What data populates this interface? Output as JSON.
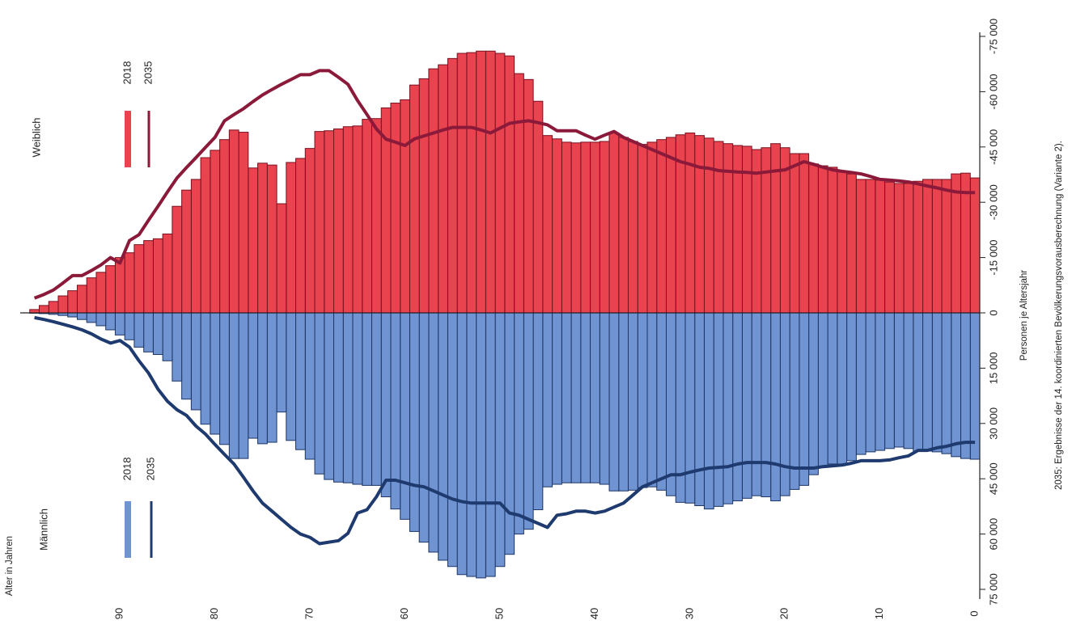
{
  "chart_data": {
    "type": "population-pyramid",
    "x_label": "Alter in Jahren",
    "y_label": "Personen je Altersjahr",
    "note": "2035:  Ergebnisse der 14. koordinierten Bevölkerungsvorausberechnung (Variante 2).",
    "x": [
      0,
      1,
      2,
      3,
      4,
      5,
      6,
      7,
      8,
      9,
      10,
      11,
      12,
      13,
      14,
      15,
      16,
      17,
      18,
      19,
      20,
      21,
      22,
      23,
      24,
      25,
      26,
      27,
      28,
      29,
      30,
      31,
      32,
      33,
      34,
      35,
      36,
      37,
      38,
      39,
      40,
      41,
      42,
      43,
      44,
      45,
      46,
      47,
      48,
      49,
      50,
      51,
      52,
      53,
      54,
      55,
      56,
      57,
      58,
      59,
      60,
      61,
      62,
      63,
      64,
      65,
      66,
      67,
      68,
      69,
      70,
      71,
      72,
      73,
      74,
      75,
      76,
      77,
      78,
      79,
      80,
      81,
      82,
      83,
      84,
      85,
      86,
      87,
      88,
      89,
      90,
      91,
      92,
      93,
      94,
      95,
      96,
      97,
      98,
      99
    ],
    "xlim": [
      -0.5,
      100.5
    ],
    "xticks": [
      0,
      10,
      20,
      30,
      40,
      50,
      60,
      70,
      80,
      90
    ],
    "ylim": [
      -75000,
      75000
    ],
    "yticks": [
      {
        "value": -75000,
        "label": "-75 000"
      },
      {
        "value": -60000,
        "label": "-60 000"
      },
      {
        "value": -45000,
        "label": "-45 000"
      },
      {
        "value": -30000,
        "label": "-30 000"
      },
      {
        "value": -15000,
        "label": "-15 000"
      },
      0,
      {
        "value": 15000,
        "label": "15 000"
      },
      {
        "value": 30000,
        "label": "30 000"
      },
      {
        "value": 45000,
        "label": "45 000"
      },
      {
        "value": 60000,
        "label": "60 000"
      },
      {
        "value": 75000,
        "label": "75 000"
      }
    ],
    "groups": [
      {
        "name": "Weiblich",
        "series": [
          {
            "name": "2018",
            "type": "bar",
            "color": "#e8434f",
            "stroke": "#7a1020",
            "values": [
              -36600,
              -37900,
              -37700,
              -36200,
              -36200,
              -36200,
              -35700,
              -35100,
              -35100,
              -35500,
              -36000,
              -36200,
              -36200,
              -37700,
              -38400,
              -39500,
              -39900,
              -40400,
              -43200,
              -43200,
              -44800,
              -45900,
              -44800,
              -44300,
              -45200,
              -45400,
              -45900,
              -46500,
              -47400,
              -48100,
              -48800,
              -48300,
              -47600,
              -47000,
              -46300,
              -45700,
              -46500,
              -47600,
              -48800,
              -46500,
              -46300,
              -46300,
              -46100,
              -46300,
              -47200,
              -48100,
              -57400,
              -63300,
              -64900,
              -69700,
              -70400,
              -71000,
              -71000,
              -70600,
              -70400,
              -69000,
              -67300,
              -66200,
              -63500,
              -61800,
              -57800,
              -56900,
              -55600,
              -52700,
              -52500,
              -50700,
              -50500,
              -49900,
              -49400,
              -49200,
              -44600,
              -41900,
              -40800,
              -29600,
              -40100,
              -40600,
              -39300,
              -49000,
              -49600,
              -47000,
              -44100,
              -42100,
              -36200,
              -33300,
              -28900,
              -21400,
              -20100,
              -19600,
              -18500,
              -16300,
              -15000,
              -12800,
              -11000,
              -9500,
              -7500,
              -6000,
              -4600,
              -3100,
              -2000,
              -900
            ]
          },
          {
            "name": "2035",
            "type": "line",
            "color": "#8b1a3a",
            "values": [
              -32600,
              -32600,
              -32800,
              -33300,
              -33900,
              -34400,
              -35000,
              -35500,
              -35800,
              -36000,
              -36200,
              -37000,
              -37700,
              -38100,
              -38400,
              -38800,
              -39500,
              -40300,
              -41000,
              -39900,
              -38800,
              -38500,
              -38200,
              -37900,
              -38100,
              -38200,
              -38400,
              -38600,
              -39200,
              -39500,
              -40300,
              -41000,
              -42100,
              -43200,
              -44300,
              -45400,
              -46500,
              -47600,
              -49200,
              -48200,
              -47100,
              -48200,
              -49400,
              -49400,
              -49400,
              -51000,
              -51600,
              -52100,
              -51800,
              -51400,
              -50100,
              -48800,
              -49600,
              -50300,
              -50300,
              -50300,
              -49600,
              -48800,
              -48000,
              -47200,
              -45400,
              -46300,
              -47100,
              -49900,
              -53800,
              -57600,
              -62000,
              -63900,
              -65700,
              -65700,
              -64600,
              -64600,
              -63300,
              -62000,
              -60600,
              -59100,
              -57300,
              -55400,
              -53800,
              -52100,
              -47600,
              -44900,
              -42100,
              -39400,
              -36600,
              -32800,
              -28900,
              -25100,
              -21200,
              -19600,
              -13500,
              -15000,
              -13000,
              -11500,
              -10100,
              -10100,
              -8100,
              -6200,
              -5000,
              -4000
            ]
          }
        ]
      },
      {
        "name": "Männlich",
        "series": [
          {
            "name": "2018",
            "type": "bar",
            "color": "#7094d2",
            "stroke": "#1c3566",
            "values": [
              39700,
              39500,
              39000,
              38200,
              37700,
              37500,
              37500,
              36800,
              36400,
              36800,
              37300,
              37700,
              38400,
              40100,
              41000,
              41000,
              41900,
              43900,
              46800,
              47900,
              49600,
              51000,
              49900,
              49600,
              50300,
              51000,
              51800,
              52500,
              53200,
              52300,
              51600,
              51400,
              49600,
              48100,
              47200,
              47400,
              48100,
              48300,
              48300,
              46500,
              46100,
              46100,
              46100,
              46100,
              46500,
              47200,
              53400,
              58700,
              60000,
              65500,
              68800,
              71500,
              71900,
              71500,
              71000,
              68800,
              67100,
              64900,
              62200,
              59300,
              56000,
              53200,
              49900,
              46800,
              46800,
              46500,
              46100,
              45900,
              45200,
              43700,
              39700,
              37100,
              34600,
              26900,
              35100,
              35500,
              34000,
              39500,
              39500,
              35700,
              32900,
              30200,
              26300,
              23400,
              18500,
              13000,
              11300,
              10600,
              9300,
              7300,
              6000,
              4600,
              3500,
              2600,
              1800,
              1100,
              700,
              400,
              200,
              100
            ]
          },
          {
            "name": "2035",
            "type": "line",
            "color": "#1e3a6e",
            "values": [
              35100,
              35100,
              35500,
              36200,
              36600,
              37300,
              37300,
              38800,
              39300,
              39900,
              40100,
              40100,
              40100,
              40800,
              41300,
              41500,
              41700,
              42100,
              42100,
              42100,
              41700,
              41000,
              40600,
              40600,
              40600,
              41000,
              41700,
              41900,
              42100,
              42600,
              43200,
              43900,
              43900,
              45000,
              46100,
              47200,
              49400,
              51600,
              52700,
              53800,
              54300,
              53800,
              53800,
              54500,
              54900,
              58200,
              57100,
              56000,
              54900,
              54300,
              51600,
              51600,
              51600,
              51600,
              51200,
              50500,
              49400,
              48300,
              47200,
              46800,
              46100,
              45400,
              45400,
              49900,
              53400,
              54300,
              59800,
              61800,
              62200,
              62600,
              60900,
              60000,
              58200,
              56000,
              53800,
              51600,
              48300,
              44600,
              41000,
              38400,
              35700,
              32900,
              30700,
              27800,
              26300,
              24000,
              20700,
              16300,
              13000,
              9300,
              7500,
              8200,
              7100,
              5700,
              4600,
              3800,
              3100,
              2400,
              1800,
              1300
            ]
          }
        ]
      }
    ]
  }
}
